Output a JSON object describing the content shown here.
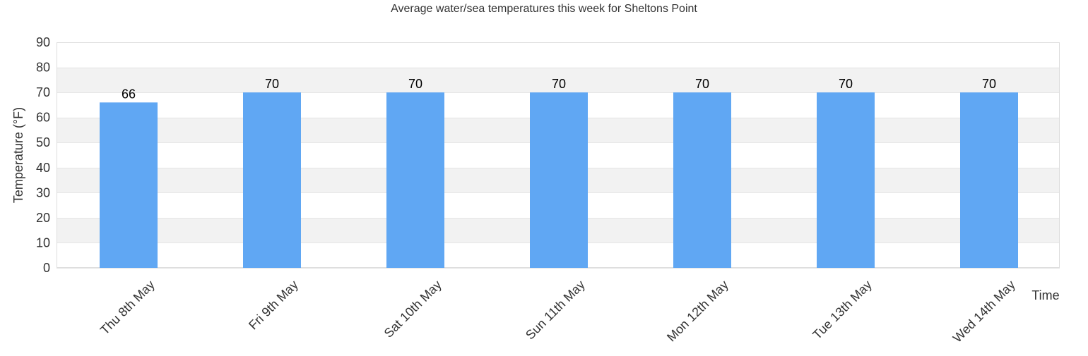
{
  "chart_data": {
    "type": "bar",
    "title": "Average water/sea temperatures this week for Sheltons Point",
    "xlabel": "Time",
    "ylabel": "Temperature (°F)",
    "ylim": [
      0,
      90
    ],
    "yticks": [
      0,
      10,
      20,
      30,
      40,
      50,
      60,
      70,
      80,
      90
    ],
    "categories": [
      "Thu 8th May",
      "Fri 9th May",
      "Sat 10th May",
      "Sun 11th May",
      "Mon 12th May",
      "Tue 13th May",
      "Wed 14th May"
    ],
    "values": [
      66,
      70,
      70,
      70,
      70,
      70,
      70
    ],
    "data_labels": [
      "66",
      "70",
      "70",
      "70",
      "70",
      "70",
      "70"
    ],
    "bar_color": "#60a7f3",
    "band_color": "#f2f2f2",
    "grid": true,
    "legend": false
  }
}
